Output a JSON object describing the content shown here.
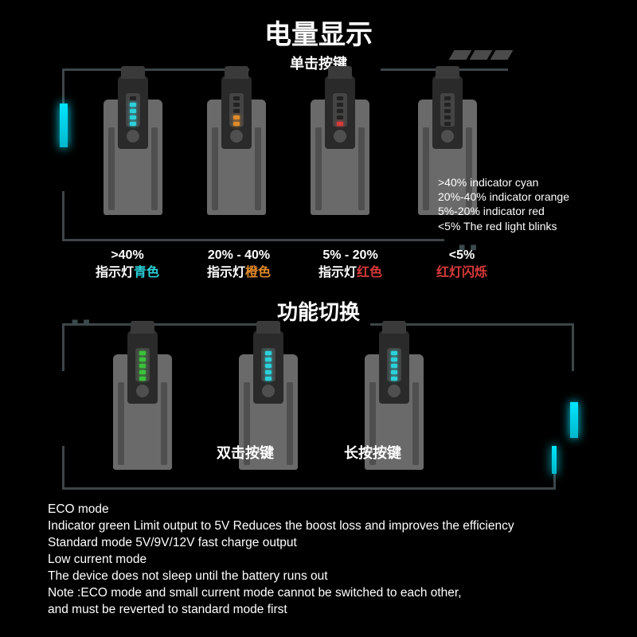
{
  "colors": {
    "bg": "#000000",
    "text": "#ffffff",
    "cyan": "#2bd1da",
    "orange": "#e08a2a",
    "red": "#d93a3a",
    "green": "#3ac23a",
    "battery_body": "#6a6a6a",
    "battery_dark": "#2a2a2a",
    "bracket": "#3d4548",
    "accent_glow": "#00e5ff"
  },
  "section1": {
    "title": "电量显示",
    "subtitle": "单击按键",
    "batteries": [
      {
        "level_color": "#2bd1da",
        "lit": 4,
        "percent": ">40%",
        "desc_prefix": "指示灯",
        "desc_color_word": "青色",
        "desc_color": "#2bd1da"
      },
      {
        "level_color": "#e08a2a",
        "lit": 2,
        "percent": "20% - 40%",
        "desc_prefix": "指示灯",
        "desc_color_word": "橙色",
        "desc_color": "#e08a2a"
      },
      {
        "level_color": "#d93a3a",
        "lit": 1,
        "percent": "5% - 20%",
        "desc_prefix": "指示灯",
        "desc_color_word": "红色",
        "desc_color": "#d93a3a"
      },
      {
        "level_color": "#d93a3a",
        "lit": 0,
        "percent": "<5%",
        "desc_prefix": "",
        "desc_color_word": "红灯闪烁",
        "desc_color": "#d93a3a"
      }
    ],
    "legend_en": [
      ">40% indicator cyan",
      "20%-40% indicator orange",
      "5%-20% indicator red",
      "<5% The red light blinks"
    ]
  },
  "section2": {
    "title": "功能切换",
    "batteries": [
      {
        "level_color": "#3ac23a",
        "lit": 5
      },
      {
        "level_color": "#2bd1da",
        "lit": 5
      },
      {
        "level_color": "#2bd1da",
        "lit": 5
      }
    ],
    "labels": [
      "双击按键",
      "长按按键"
    ]
  },
  "eco": {
    "lines": [
      "ECO mode",
      "Indicator green Limit output to 5V Reduces the boost loss and improves the efficiency",
      "Standard mode 5V/9V/12V fast charge output",
      "Low current mode",
      "The device does not sleep until the battery runs out",
      "Note :ECO mode and small current mode cannot be switched to each other,",
      "and must be reverted to standard mode first"
    ]
  },
  "typography": {
    "title_size": 34,
    "subtitle_size": 18,
    "label_size": 16,
    "eco_size": 15.5
  }
}
